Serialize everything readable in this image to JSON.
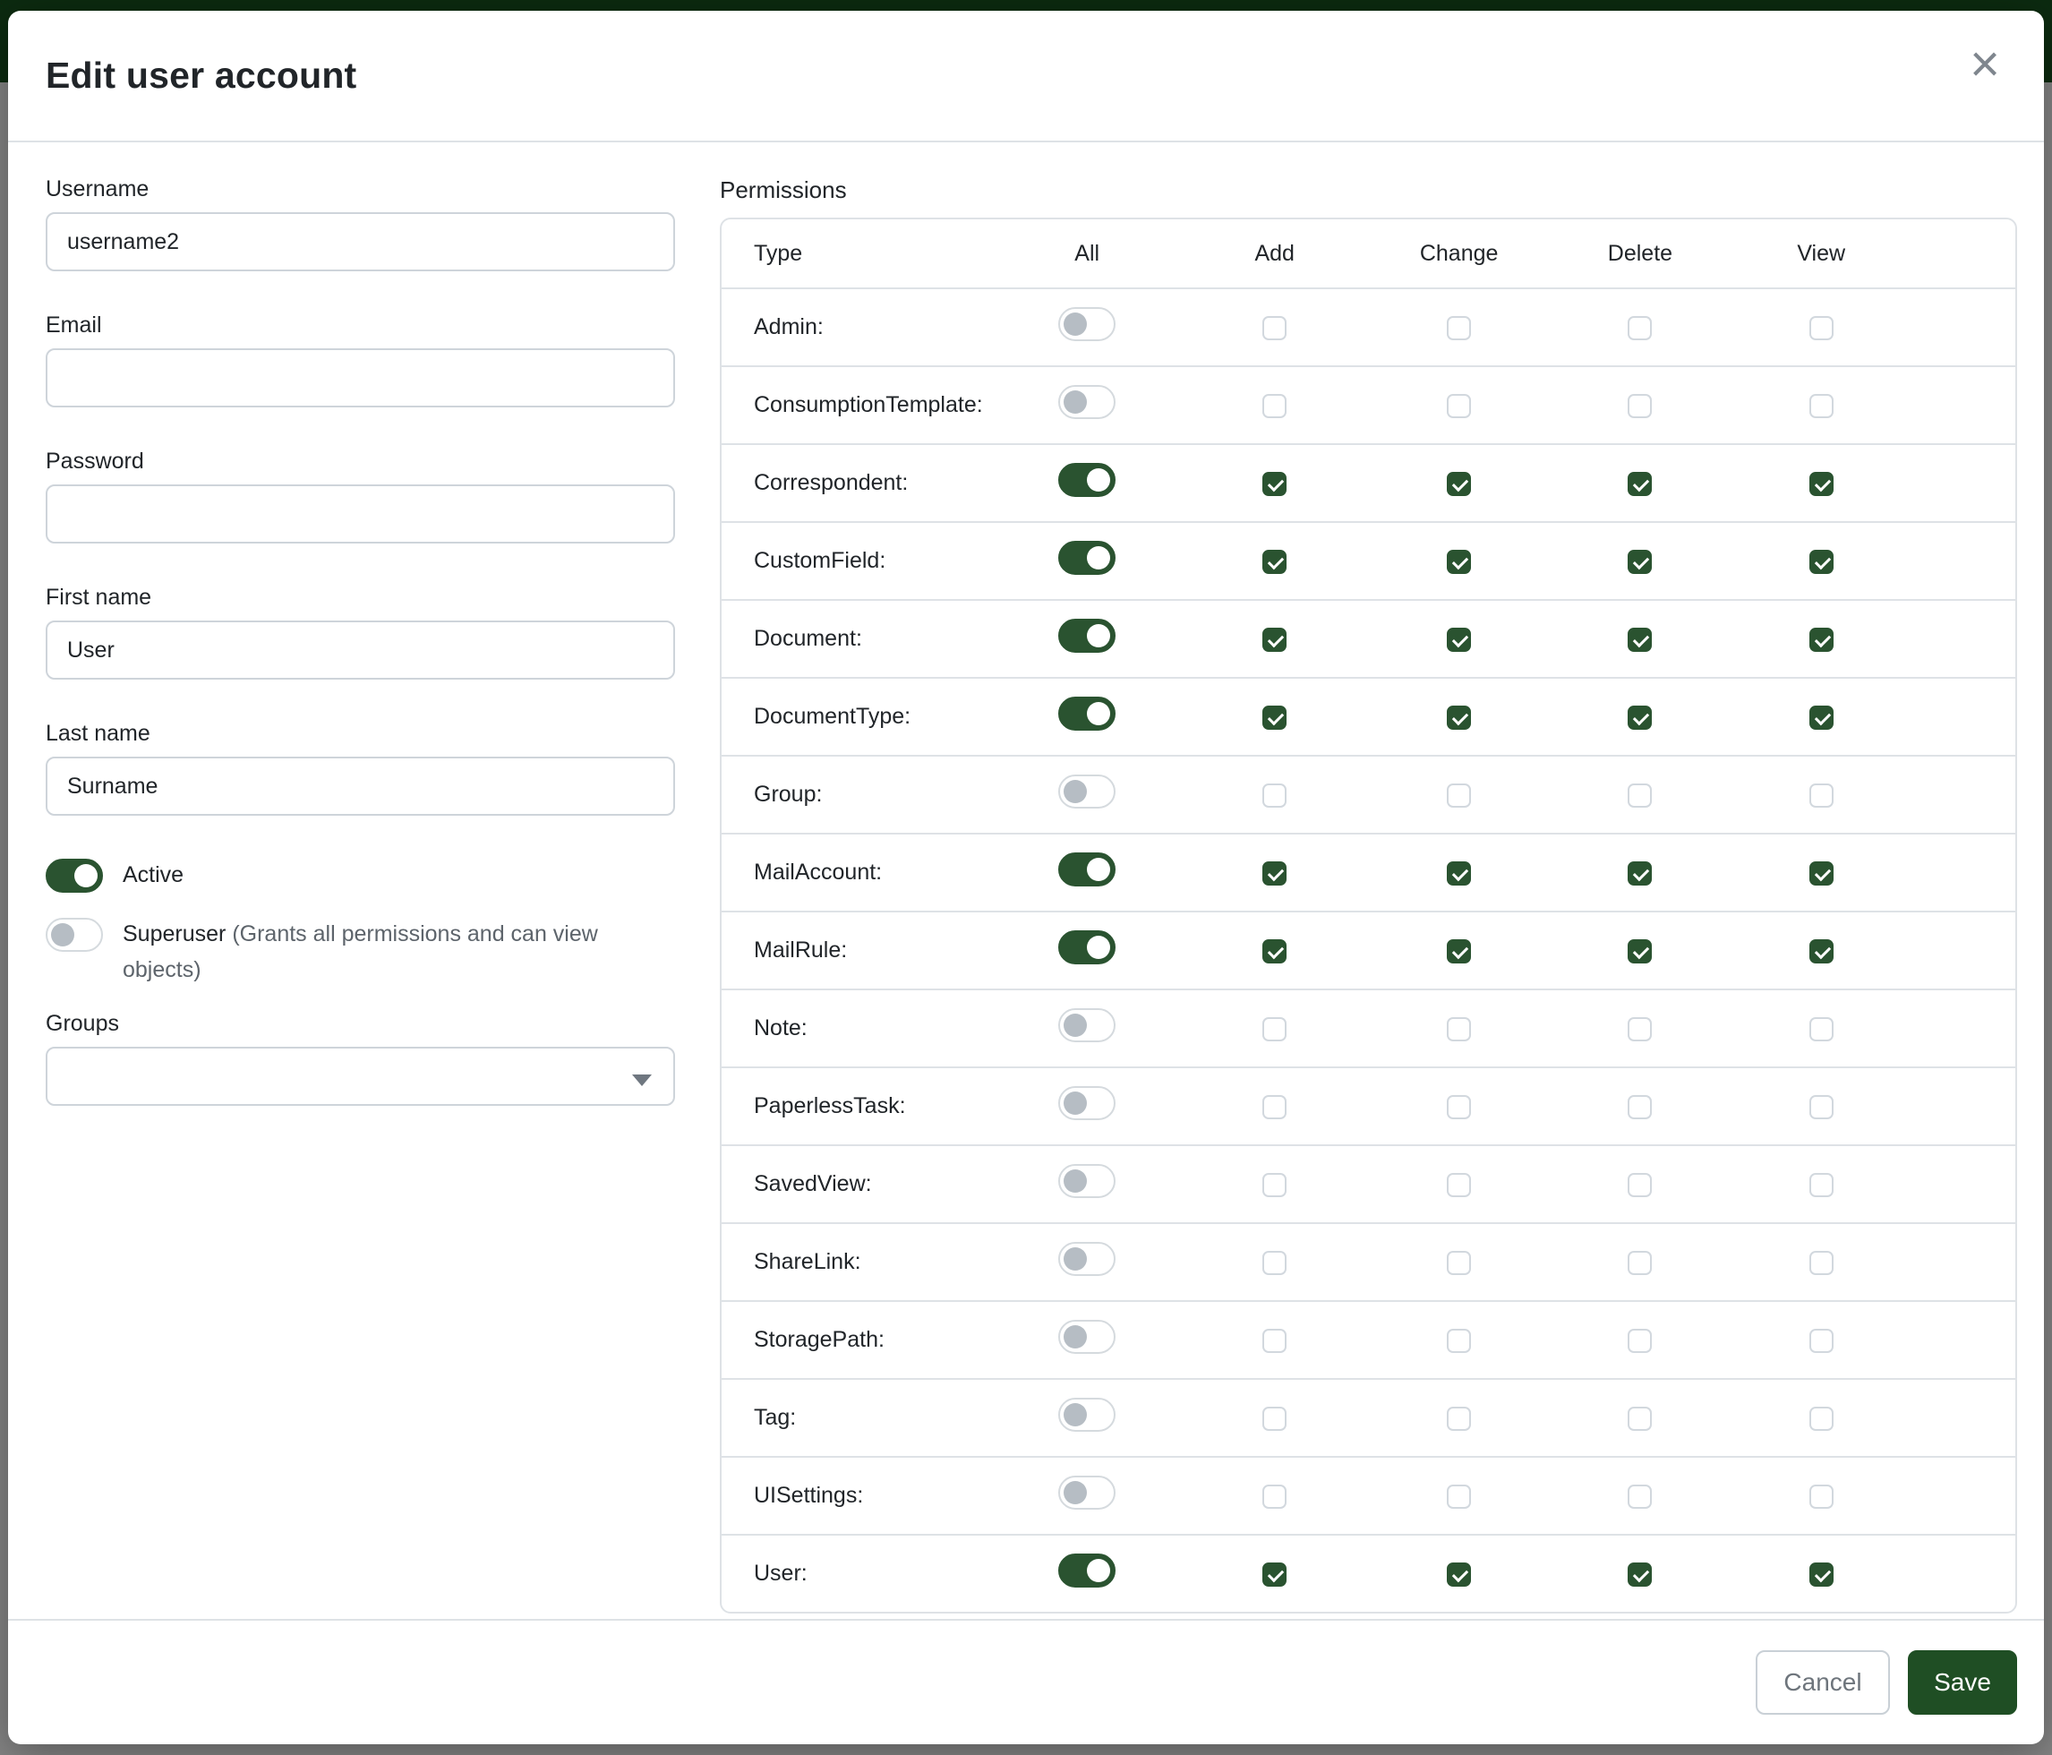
{
  "modal": {
    "title": "Edit user account",
    "close_icon": "×"
  },
  "form": {
    "username": {
      "label": "Username",
      "value": "username2"
    },
    "email": {
      "label": "Email",
      "value": ""
    },
    "password": {
      "label": "Password",
      "value": ""
    },
    "first_name": {
      "label": "First name",
      "value": "User"
    },
    "last_name": {
      "label": "Last name",
      "value": "Surname"
    },
    "active": {
      "label": "Active",
      "enabled": true
    },
    "superuser": {
      "label": "Superuser",
      "note": "(Grants all permissions and can view objects)",
      "enabled": false
    },
    "groups": {
      "label": "Groups",
      "value": ""
    }
  },
  "permissions": {
    "label": "Permissions",
    "columns": [
      "Type",
      "All",
      "Add",
      "Change",
      "Delete",
      "View"
    ],
    "rows": [
      {
        "type": "Admin:",
        "all": false,
        "add": false,
        "change": false,
        "delete": false,
        "view": false
      },
      {
        "type": "ConsumptionTemplate:",
        "all": false,
        "add": false,
        "change": false,
        "delete": false,
        "view": false
      },
      {
        "type": "Correspondent:",
        "all": true,
        "add": true,
        "change": true,
        "delete": true,
        "view": true
      },
      {
        "type": "CustomField:",
        "all": true,
        "add": true,
        "change": true,
        "delete": true,
        "view": true
      },
      {
        "type": "Document:",
        "all": true,
        "add": true,
        "change": true,
        "delete": true,
        "view": true
      },
      {
        "type": "DocumentType:",
        "all": true,
        "add": true,
        "change": true,
        "delete": true,
        "view": true
      },
      {
        "type": "Group:",
        "all": false,
        "add": false,
        "change": false,
        "delete": false,
        "view": false
      },
      {
        "type": "MailAccount:",
        "all": true,
        "add": true,
        "change": true,
        "delete": true,
        "view": true
      },
      {
        "type": "MailRule:",
        "all": true,
        "add": true,
        "change": true,
        "delete": true,
        "view": true
      },
      {
        "type": "Note:",
        "all": false,
        "add": false,
        "change": false,
        "delete": false,
        "view": false
      },
      {
        "type": "PaperlessTask:",
        "all": false,
        "add": false,
        "change": false,
        "delete": false,
        "view": false
      },
      {
        "type": "SavedView:",
        "all": false,
        "add": false,
        "change": false,
        "delete": false,
        "view": false
      },
      {
        "type": "ShareLink:",
        "all": false,
        "add": false,
        "change": false,
        "delete": false,
        "view": false
      },
      {
        "type": "StoragePath:",
        "all": false,
        "add": false,
        "change": false,
        "delete": false,
        "view": false
      },
      {
        "type": "Tag:",
        "all": false,
        "add": false,
        "change": false,
        "delete": false,
        "view": false
      },
      {
        "type": "UISettings:",
        "all": false,
        "add": false,
        "change": false,
        "delete": false,
        "view": false
      },
      {
        "type": "User:",
        "all": true,
        "add": true,
        "change": true,
        "delete": true,
        "view": true
      }
    ]
  },
  "footer": {
    "cancel_label": "Cancel",
    "save_label": "Save"
  },
  "colors": {
    "primary_green": "#2a5330",
    "save_button_green": "#1f4e24",
    "navbar_green": "#17541f",
    "border_gray": "#dee2e6"
  }
}
